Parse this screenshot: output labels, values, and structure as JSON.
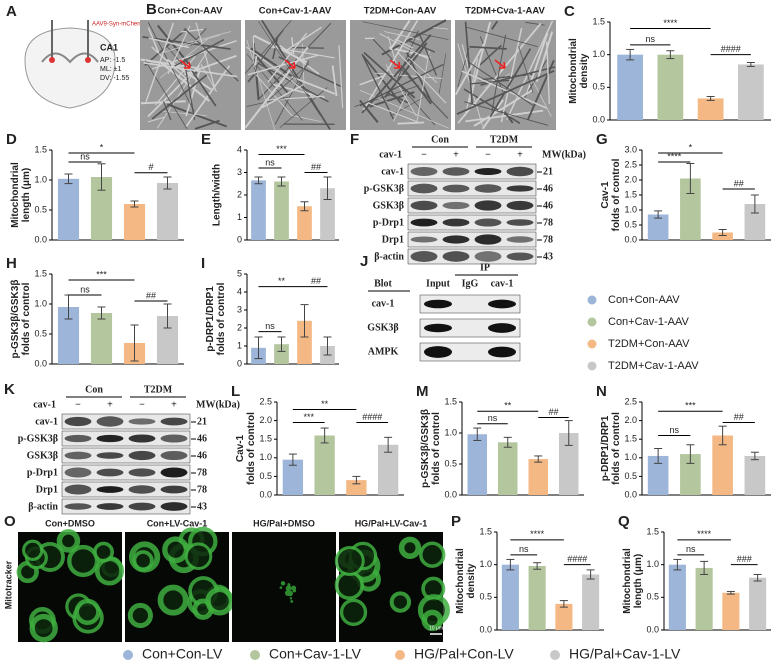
{
  "panel_a": {
    "panel": "A",
    "virus": "AAV9-Syn-mCherry",
    "region": "CA1",
    "coords": [
      "AP: -1.5",
      "ML: ±1",
      "DV: -1.55"
    ]
  },
  "panel_b": {
    "panel": "B",
    "labels": [
      "Con+Con-AAV",
      "Con+Cav-1-AAV",
      "T2DM+Con-AAV",
      "T2DM+Cva-1-AAV"
    ]
  },
  "panel_o": {
    "panel": "O",
    "labels": [
      "Con+DMSO",
      "Con+LV-Cav-1",
      "HG/Pal+DMSO",
      "HG/Pal+LV-Cav-1"
    ],
    "stain": "Mitotracker",
    "scale": "10 μm"
  },
  "blot_f": {
    "panel": "F",
    "groups": [
      "Con",
      "T2DM"
    ],
    "treatment": "cav-1",
    "lanes": [
      "−",
      "+",
      "−",
      "+"
    ],
    "mw_header": "MW(kDa)",
    "rows": [
      {
        "name": "cav-1",
        "mw": 21
      },
      {
        "name": "p-GSK3β",
        "mw": 46
      },
      {
        "name": "GSK3β",
        "mw": 46
      },
      {
        "name": "p-Drp1",
        "mw": 78
      },
      {
        "name": "Drp1",
        "mw": 78
      },
      {
        "name": "β-actin",
        "mw": 43
      }
    ]
  },
  "blot_k": {
    "panel": "K",
    "groups": [
      "Con",
      "T2DM"
    ],
    "treatment": "cav-1",
    "lanes": [
      "−",
      "+",
      "−",
      "+"
    ],
    "mw_header": "MW(kDa)",
    "rows": [
      {
        "name": "cav-1",
        "mw": 21
      },
      {
        "name": "p-GSK3β",
        "mw": 46
      },
      {
        "name": "GSK3β",
        "mw": 46
      },
      {
        "name": "p-Drp1",
        "mw": 78
      },
      {
        "name": "Drp1",
        "mw": 78
      },
      {
        "name": "β-actin",
        "mw": 43
      }
    ]
  },
  "blot_j": {
    "panel": "J",
    "header": "Blot",
    "ip": "IP",
    "lanes": [
      "Input",
      "IgG",
      "cav-1"
    ],
    "rows": [
      "cav-1",
      "GSK3β",
      "AMPK"
    ]
  },
  "legend_aav": [
    {
      "name": "Con+Con-AAV",
      "color": "#9db5d9"
    },
    {
      "name": "Con+Cav-1-AAV",
      "color": "#b4c69e"
    },
    {
      "name": "T2DM+Con-AAV",
      "color": "#f4b885"
    },
    {
      "name": "T2DM+Cav-1-AAV",
      "color": "#c8c8c8"
    }
  ],
  "legend_lv": [
    {
      "name": "Con+Con-LV",
      "color": "#9db5d9"
    },
    {
      "name": "Con+Cav-1-LV",
      "color": "#b4c69e"
    },
    {
      "name": "HG/Pal+Con-LV",
      "color": "#f4b885"
    },
    {
      "name": "HG/Pal+Cav-1-LV",
      "color": "#c8c8c8"
    }
  ],
  "chart_data": [
    {
      "type": "bar",
      "panel": "C",
      "ylabel": [
        "Mitochondrial",
        "density"
      ],
      "values": [
        1.0,
        1.0,
        0.33,
        0.85
      ],
      "errors": [
        0.08,
        0.06,
        0.03,
        0.03
      ],
      "colors": [
        "#9db5d9",
        "#b4c69e",
        "#f4b885",
        "#c8c8c8"
      ],
      "ylim": [
        0,
        1.5
      ],
      "yticks": [
        {
          "value": 0,
          "label": "0.0"
        },
        0.5,
        {
          "value": 1,
          "label": "1.0"
        },
        1.5
      ],
      "annotations": [
        {
          "text": "ns",
          "from": 0,
          "to": 1,
          "y": 1.15
        },
        {
          "text": "****",
          "from": 0,
          "to": 2,
          "y": 1.4
        },
        {
          "text": "####",
          "from": 2,
          "to": 3,
          "y": 1.0
        }
      ]
    },
    {
      "type": "bar",
      "panel": "D",
      "ylabel": [
        "Mitochondrial",
        "length (μm)"
      ],
      "values": [
        1.02,
        1.05,
        0.6,
        0.95
      ],
      "errors": [
        0.08,
        0.22,
        0.05,
        0.1
      ],
      "colors": [
        "#9db5d9",
        "#b4c69e",
        "#f4b885",
        "#c8c8c8"
      ],
      "ylim": [
        0,
        1.5
      ],
      "yticks": [
        {
          "value": 0,
          "label": "0.0"
        },
        0.5,
        {
          "value": 1,
          "label": "1.0"
        },
        1.5
      ],
      "annotations": [
        {
          "text": "ns",
          "from": 0,
          "to": 1,
          "y": 1.3
        },
        {
          "text": "*",
          "from": 0,
          "to": 2,
          "y": 1.45
        },
        {
          "text": "#",
          "from": 2,
          "to": 3,
          "y": 1.12
        }
      ]
    },
    {
      "type": "bar",
      "panel": "E",
      "ylabel": [
        "Length/width"
      ],
      "values": [
        2.65,
        2.6,
        1.5,
        2.3
      ],
      "errors": [
        0.15,
        0.2,
        0.2,
        0.5
      ],
      "colors": [
        "#9db5d9",
        "#b4c69e",
        "#f4b885",
        "#c8c8c8"
      ],
      "ylim": [
        0,
        4
      ],
      "yticks": [
        0,
        1,
        2,
        3,
        4
      ],
      "annotations": [
        {
          "text": "ns",
          "from": 0,
          "to": 1,
          "y": 3.2
        },
        {
          "text": "***",
          "from": 0,
          "to": 2,
          "y": 3.8
        },
        {
          "text": "##",
          "from": 2,
          "to": 3,
          "y": 3.0
        }
      ]
    },
    {
      "type": "bar",
      "panel": "G",
      "ylabel": [
        "Cav-1",
        "folds of control"
      ],
      "values": [
        0.85,
        2.05,
        0.25,
        1.2
      ],
      "errors": [
        0.12,
        0.5,
        0.1,
        0.3
      ],
      "colors": [
        "#9db5d9",
        "#b4c69e",
        "#f4b885",
        "#c8c8c8"
      ],
      "ylim": [
        0,
        3
      ],
      "yticks": [
        {
          "value": 0,
          "label": "0.0"
        },
        0.5,
        {
          "value": 1,
          "label": "1.0"
        },
        1.5,
        {
          "value": 2,
          "label": "2.0"
        },
        2.5,
        {
          "value": 3,
          "label": "3.0"
        }
      ],
      "annotations": [
        {
          "text": "****",
          "from": 0,
          "to": 1,
          "y": 2.6
        },
        {
          "text": "*",
          "from": 0,
          "to": 2,
          "y": 2.9
        },
        {
          "text": "##",
          "from": 2,
          "to": 3,
          "y": 1.7
        }
      ]
    },
    {
      "type": "bar",
      "panel": "H",
      "ylabel": [
        "p-GSK3β/GSK3β",
        "folds of control"
      ],
      "values": [
        0.95,
        0.85,
        0.35,
        0.8
      ],
      "errors": [
        0.2,
        0.1,
        0.3,
        0.2
      ],
      "colors": [
        "#9db5d9",
        "#b4c69e",
        "#f4b885",
        "#c8c8c8"
      ],
      "ylim": [
        0,
        1.5
      ],
      "yticks": [
        {
          "value": 0,
          "label": "0.0"
        },
        0.5,
        {
          "value": 1,
          "label": "1.0"
        },
        1.5
      ],
      "annotations": [
        {
          "text": "ns",
          "from": 0,
          "to": 1,
          "y": 1.15
        },
        {
          "text": "***",
          "from": 0,
          "to": 2,
          "y": 1.4
        },
        {
          "text": "##",
          "from": 2,
          "to": 3,
          "y": 1.05
        }
      ]
    },
    {
      "type": "bar",
      "panel": "I",
      "ylabel": [
        "p-DRP1/DRP1",
        "folds of control"
      ],
      "values": [
        0.9,
        1.1,
        2.4,
        1.0
      ],
      "errors": [
        0.6,
        0.4,
        0.9,
        0.5
      ],
      "colors": [
        "#9db5d9",
        "#b4c69e",
        "#f4b885",
        "#c8c8c8"
      ],
      "ylim": [
        0,
        5
      ],
      "yticks": [
        0,
        1,
        2,
        3,
        4,
        5
      ],
      "annotations": [
        {
          "text": "ns",
          "from": 0,
          "to": 1,
          "y": 1.8
        },
        {
          "text": "**",
          "from": 0,
          "to": 2,
          "y": 4.3
        },
        {
          "text": "##",
          "from": 2,
          "to": 3,
          "y": 4.3
        }
      ]
    },
    {
      "type": "bar",
      "panel": "L",
      "ylabel": [
        "Cav-1",
        "folds of control"
      ],
      "values": [
        0.95,
        1.6,
        0.4,
        1.35
      ],
      "errors": [
        0.15,
        0.2,
        0.1,
        0.2
      ],
      "colors": [
        "#9db5d9",
        "#b4c69e",
        "#f4b885",
        "#c8c8c8"
      ],
      "ylim": [
        0,
        2.5
      ],
      "yticks": [
        {
          "value": 0,
          "label": "0.0"
        },
        0.5,
        {
          "value": 1,
          "label": "1.0"
        },
        1.5,
        {
          "value": 2,
          "label": "2.0"
        },
        2.5
      ],
      "annotations": [
        {
          "text": "***",
          "from": 0,
          "to": 1,
          "y": 1.95
        },
        {
          "text": "**",
          "from": 0,
          "to": 2,
          "y": 2.3
        },
        {
          "text": "####",
          "from": 2,
          "to": 3,
          "y": 1.95
        }
      ]
    },
    {
      "type": "bar",
      "panel": "M",
      "ylabel": [
        "p-GSK3β/GSK3β",
        "folds of control"
      ],
      "values": [
        0.98,
        0.85,
        0.58,
        1.0
      ],
      "errors": [
        0.1,
        0.08,
        0.05,
        0.2
      ],
      "colors": [
        "#9db5d9",
        "#b4c69e",
        "#f4b885",
        "#c8c8c8"
      ],
      "ylim": [
        0,
        1.5
      ],
      "yticks": [
        {
          "value": 0,
          "label": "0.0"
        },
        0.5,
        {
          "value": 1,
          "label": "1.0"
        },
        1.5
      ],
      "annotations": [
        {
          "text": "ns",
          "from": 0,
          "to": 1,
          "y": 1.15
        },
        {
          "text": "**",
          "from": 0,
          "to": 2,
          "y": 1.35
        },
        {
          "text": "##",
          "from": 2,
          "to": 3,
          "y": 1.25
        }
      ]
    },
    {
      "type": "bar",
      "panel": "N",
      "ylabel": [
        "p-DRP1/DRP1",
        "folds of control"
      ],
      "values": [
        1.05,
        1.1,
        1.6,
        1.05
      ],
      "errors": [
        0.2,
        0.25,
        0.25,
        0.1
      ],
      "colors": [
        "#9db5d9",
        "#b4c69e",
        "#f4b885",
        "#c8c8c8"
      ],
      "ylim": [
        0,
        2.5
      ],
      "yticks": [
        {
          "value": 0,
          "label": "0.0"
        },
        0.5,
        {
          "value": 1,
          "label": "1.0"
        },
        1.5,
        {
          "value": 2,
          "label": "2.0"
        },
        2.5
      ],
      "annotations": [
        {
          "text": "ns",
          "from": 0,
          "to": 1,
          "y": 1.6
        },
        {
          "text": "***",
          "from": 0,
          "to": 2,
          "y": 2.25
        },
        {
          "text": "##",
          "from": 2,
          "to": 3,
          "y": 1.95
        }
      ]
    },
    {
      "type": "bar",
      "panel": "P",
      "ylabel": [
        "Mitochondrial",
        "density"
      ],
      "values": [
        1.0,
        0.98,
        0.4,
        0.85
      ],
      "errors": [
        0.08,
        0.05,
        0.05,
        0.07
      ],
      "colors": [
        "#9db5d9",
        "#b4c69e",
        "#f4b885",
        "#c8c8c8"
      ],
      "ylim": [
        0,
        1.5
      ],
      "yticks": [
        {
          "value": 0,
          "label": "0.0"
        },
        0.5,
        {
          "value": 1,
          "label": "1.0"
        },
        1.5
      ],
      "annotations": [
        {
          "text": "ns",
          "from": 0,
          "to": 1,
          "y": 1.15
        },
        {
          "text": "****",
          "from": 0,
          "to": 2,
          "y": 1.38
        },
        {
          "text": "####",
          "from": 2,
          "to": 3,
          "y": 1.0
        }
      ]
    },
    {
      "type": "bar",
      "panel": "Q",
      "ylabel": [
        "Mitochondrial",
        "length (μm)"
      ],
      "values": [
        1.0,
        0.95,
        0.57,
        0.8
      ],
      "errors": [
        0.08,
        0.1,
        0.02,
        0.05
      ],
      "colors": [
        "#9db5d9",
        "#b4c69e",
        "#f4b885",
        "#c8c8c8"
      ],
      "ylim": [
        0,
        1.5
      ],
      "yticks": [
        {
          "value": 0,
          "label": "0.0"
        },
        0.5,
        {
          "value": 1,
          "label": "1.0"
        },
        1.5
      ],
      "annotations": [
        {
          "text": "ns",
          "from": 0,
          "to": 1,
          "y": 1.15
        },
        {
          "text": "****",
          "from": 0,
          "to": 2,
          "y": 1.38
        },
        {
          "text": "###",
          "from": 2,
          "to": 3,
          "y": 1.0
        }
      ]
    }
  ]
}
